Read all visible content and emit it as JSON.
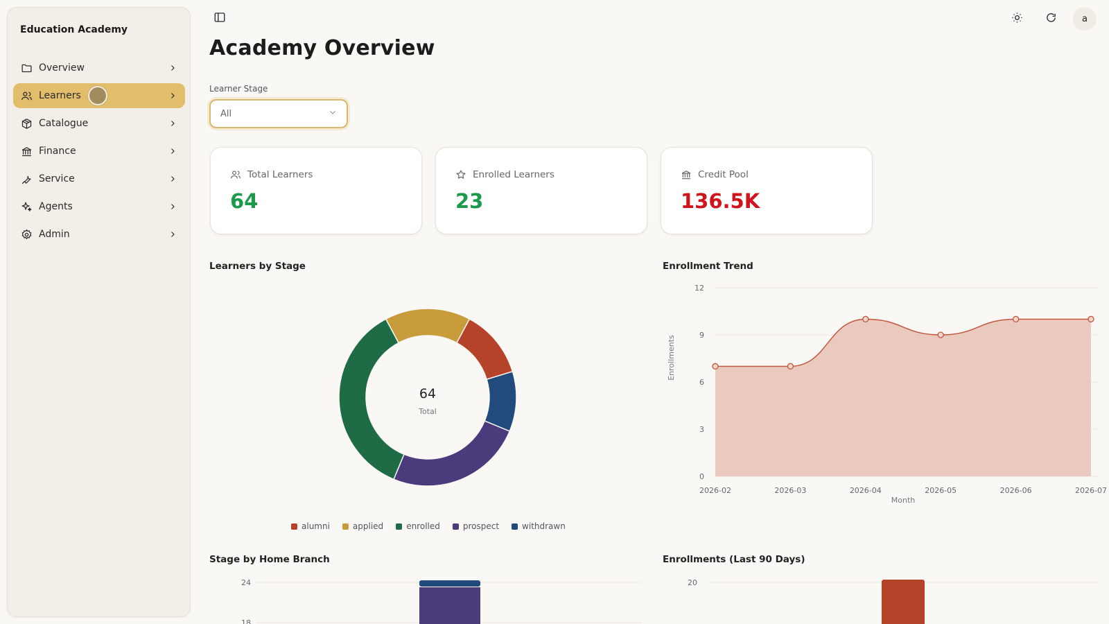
{
  "sidebar": {
    "brand": "Education Academy",
    "items": [
      {
        "label": "Overview",
        "icon": "folder-icon",
        "active": false
      },
      {
        "label": "Learners",
        "icon": "users-icon",
        "active": true
      },
      {
        "label": "Catalogue",
        "icon": "package-icon",
        "active": false
      },
      {
        "label": "Finance",
        "icon": "bank-icon",
        "active": false
      },
      {
        "label": "Service",
        "icon": "wrench-icon",
        "active": false
      },
      {
        "label": "Agents",
        "icon": "sparkles-icon",
        "active": false
      },
      {
        "label": "Admin",
        "icon": "gear-icon",
        "active": false
      }
    ]
  },
  "header": {
    "avatar_initial": "a",
    "icons": [
      "sidebar-toggle-icon",
      "sun-icon",
      "refresh-icon"
    ]
  },
  "page": {
    "title": "Academy Overview",
    "filter": {
      "label": "Learner Stage",
      "value": "All"
    }
  },
  "stats": [
    {
      "label": "Total Learners",
      "value": "64",
      "icon": "users-icon",
      "color": "#1a9a4a"
    },
    {
      "label": "Enrolled Learners",
      "value": "23",
      "icon": "star-icon",
      "color": "#1a9a4a"
    },
    {
      "label": "Credit Pool",
      "value": "136.5K",
      "icon": "bank-icon",
      "color": "#d0141e"
    }
  ],
  "sections": {
    "stage_title": "Learners by Stage",
    "trend_title": "Enrollment Trend",
    "branch_title": "Stage by Home Branch",
    "recent_title": "Enrollments (Last 90 Days)"
  },
  "chart_data": [
    {
      "type": "pie",
      "title": "Learners by Stage",
      "center_value": "64",
      "center_label": "Total",
      "categories": [
        "alumni",
        "applied",
        "enrolled",
        "prospect",
        "withdrawn"
      ],
      "values": [
        8,
        10,
        23,
        16,
        7
      ],
      "colors": [
        "#b5432a",
        "#c89c3a",
        "#1f6b45",
        "#4b3b7c",
        "#234a7c"
      ],
      "legend": "bottom"
    },
    {
      "type": "area",
      "title": "Enrollment Trend",
      "xlabel": "Month",
      "ylabel": "Enrollments",
      "x": [
        "2026-02",
        "2026-03",
        "2026-04",
        "2026-05",
        "2026-06",
        "2026-07"
      ],
      "values": [
        7,
        7,
        10,
        9,
        10,
        10
      ],
      "ylim": [
        0,
        12
      ],
      "yticks": [
        0,
        3,
        6,
        9,
        12
      ],
      "grid": true,
      "color": "#c2553b"
    },
    {
      "type": "bar",
      "title": "Stage by Home Branch",
      "yticks": [
        18,
        24
      ],
      "note": "partially visible"
    },
    {
      "type": "bar",
      "title": "Enrollments (Last 90 Days)",
      "yticks": [
        20
      ],
      "note": "partially visible"
    }
  ]
}
